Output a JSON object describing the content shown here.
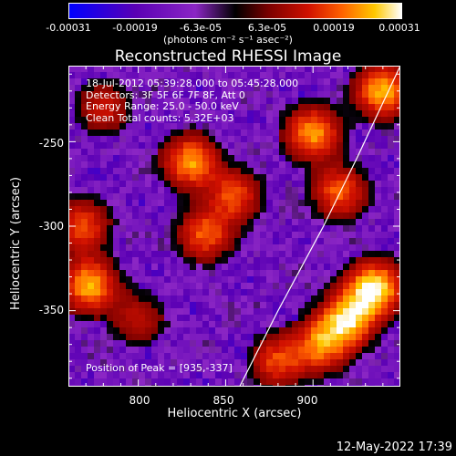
{
  "colorbar": {
    "tick_labels": [
      "-0.00031",
      "-0.00019",
      "-6.3e-05",
      "6.3e-05",
      "0.00019",
      "0.00031"
    ],
    "units": "(photons cm⁻² s⁻¹ asec⁻²)"
  },
  "chart_data": {
    "type": "heatmap",
    "title": "Reconstructed RHESSI Image",
    "xlabel": "Heliocentric X (arcsec)",
    "ylabel": "Heliocentric Y (arcsec)",
    "xlim": [
      760,
      950
    ],
    "ylim": [
      -395,
      -205
    ],
    "x_ticks": [
      800,
      850,
      900
    ],
    "y_ticks": [
      -250,
      -300,
      -350
    ],
    "colormap": [
      "#0000ff",
      "#5a00b4",
      "#8b26c4",
      "#000000",
      "#7a0000",
      "#d01000",
      "#ff6000",
      "#ffc800",
      "#ffffff"
    ],
    "value_range": [
      -0.00031,
      0.00031
    ],
    "limb_curve": [
      [
        858,
        -395
      ],
      [
        880,
        -350
      ],
      [
        906,
        -300
      ],
      [
        925,
        -260
      ],
      [
        950,
        -205
      ]
    ],
    "bright_regions": [
      {
        "x": 935,
        "y": -337,
        "peak": 1.0
      },
      {
        "x": 920,
        "y": -355,
        "peak": 0.85
      },
      {
        "x": 905,
        "y": -370,
        "peak": 0.7
      },
      {
        "x": 940,
        "y": -220,
        "peak": 0.8
      },
      {
        "x": 900,
        "y": -245,
        "peak": 0.75
      },
      {
        "x": 915,
        "y": -280,
        "peak": 0.6
      },
      {
        "x": 830,
        "y": -262,
        "peak": 0.75
      },
      {
        "x": 855,
        "y": -282,
        "peak": 0.55
      },
      {
        "x": 838,
        "y": -305,
        "peak": 0.6
      },
      {
        "x": 772,
        "y": -335,
        "peak": 0.8
      },
      {
        "x": 768,
        "y": -300,
        "peak": 0.55
      },
      {
        "x": 880,
        "y": -380,
        "peak": 0.55
      },
      {
        "x": 800,
        "y": -355,
        "peak": 0.35
      },
      {
        "x": 780,
        "y": -230,
        "peak": 0.4
      }
    ]
  },
  "info": {
    "line1": "18-Jul-2012 05:39:28.000 to 05:45:28.000",
    "line2": "Detectors: 3F 5F 6F 7F 8F, Att 0",
    "line3": "Energy Range: 25.0 - 50.0 keV",
    "line4": "Clean     Total counts: 5.32E+03"
  },
  "peak_text": "Position of Peak = [935,-337]",
  "timestamp": "12-May-2022 17:39"
}
